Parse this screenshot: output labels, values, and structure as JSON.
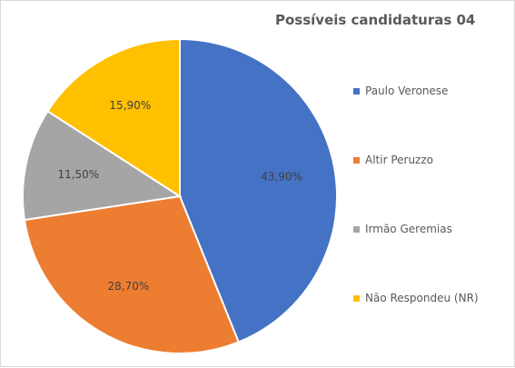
{
  "chart_data": {
    "type": "pie",
    "title": "Possíveis candidaturas 04",
    "categories": [
      "Paulo Veronese",
      "Altir Peruzzo",
      "Irmão Geremias",
      "Não Respondeu (NR)"
    ],
    "values": [
      43.9,
      28.7,
      11.5,
      15.9
    ],
    "labels": [
      "43,90%",
      "28,70%",
      "11,50%",
      "15,90%"
    ],
    "colors": [
      "#4472C4",
      "#ED7D31",
      "#A5A5A5",
      "#FFC000"
    ],
    "start_angle_deg": 0,
    "direction": "clockwise",
    "legend_position": "right"
  }
}
